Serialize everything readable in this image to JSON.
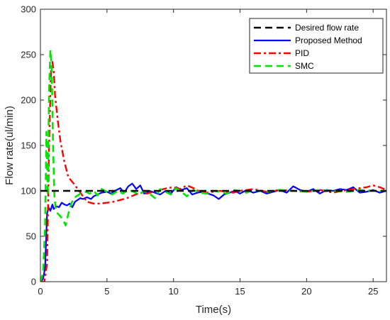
{
  "chart_data": {
    "type": "line",
    "title": "",
    "xlabel": "Time(s)",
    "ylabel": "Flow rate(ul/min)",
    "xlim": [
      0,
      26
    ],
    "ylim": [
      0,
      300
    ],
    "xticks": [
      0,
      5,
      10,
      15,
      20,
      25
    ],
    "yticks": [
      0,
      50,
      100,
      150,
      200,
      250,
      300
    ],
    "grid": false,
    "legend_position": "top-right",
    "series": [
      {
        "name": "Desired flow rate",
        "color": "#000000",
        "style": "dashed",
        "x": [
          0,
          26
        ],
        "y": [
          100,
          100
        ]
      },
      {
        "name": "Proposed Method",
        "color": "#0000ff",
        "style": "solid",
        "x": [
          0,
          0.2,
          0.35,
          0.5,
          0.6,
          0.75,
          0.9,
          1.0,
          1.2,
          1.4,
          1.6,
          1.8,
          2.0,
          2.2,
          2.4,
          2.6,
          2.8,
          3.0,
          3.2,
          3.5,
          3.8,
          4.0,
          4.3,
          4.6,
          5.0,
          5.3,
          5.6,
          6.0,
          6.3,
          6.6,
          6.9,
          7.2,
          7.5,
          7.8,
          8.2,
          8.6,
          9.0,
          9.4,
          9.8,
          10.2,
          10.6,
          11.0,
          11.4,
          11.8,
          12.2,
          12.6,
          13.0,
          13.4,
          13.8,
          14.2,
          14.6,
          15.0,
          15.5,
          16.0,
          16.5,
          17.0,
          17.5,
          18.0,
          18.5,
          19.0,
          19.5,
          20.0,
          20.5,
          21.0,
          21.5,
          22.0,
          22.5,
          23.0,
          23.5,
          24.0,
          24.5,
          25.0,
          25.5,
          26.0
        ],
        "y": [
          0,
          3,
          15,
          75,
          82,
          78,
          85,
          80,
          83,
          82,
          87,
          85,
          84,
          86,
          82,
          88,
          90,
          92,
          91,
          93,
          91,
          94,
          96,
          98,
          99,
          97,
          100,
          103,
          98,
          105,
          108,
          102,
          106,
          97,
          100,
          98,
          96,
          100,
          97,
          104,
          101,
          103,
          96,
          98,
          99,
          97,
          95,
          91,
          96,
          98,
          100,
          97,
          101,
          98,
          100,
          97,
          99,
          101,
          98,
          105,
          101,
          99,
          102,
          97,
          101,
          100,
          102,
          101,
          104,
          98,
          99,
          101,
          98,
          100
        ]
      },
      {
        "name": "PID",
        "color": "#ff0000",
        "style": "dashdot",
        "x": [
          0,
          0.3,
          0.5,
          0.65,
          0.8,
          0.9,
          1.0,
          1.1,
          1.3,
          1.5,
          1.8,
          2.1,
          2.5,
          3.0,
          3.5,
          4.0,
          4.5,
          5.0,
          5.5,
          6.0,
          6.5,
          7.0,
          7.5,
          8.0,
          8.5,
          9.0,
          9.5,
          10.0,
          10.5,
          11.0,
          11.5,
          12.0,
          12.5,
          13.0,
          13.5,
          14.0,
          14.5,
          15.0,
          16.0,
          17.0,
          18.0,
          19.0,
          20.0,
          21.0,
          22.0,
          23.0,
          24.0,
          24.5,
          25.0,
          25.5,
          26.0
        ],
        "y": [
          0,
          0,
          20,
          150,
          235,
          242,
          232,
          205,
          178,
          155,
          132,
          115,
          108,
          98,
          88,
          86,
          86,
          87,
          88,
          90,
          92,
          95,
          98,
          97,
          99,
          101,
          103,
          104,
          102,
          106,
          103,
          99,
          98,
          99,
          100,
          99,
          98,
          100,
          102,
          99,
          101,
          100,
          99,
          101,
          98,
          101,
          103,
          104,
          106,
          104,
          101
        ]
      },
      {
        "name": "SMC",
        "color": "#00e600",
        "style": "dashed",
        "x": [
          0,
          0.2,
          0.35,
          0.45,
          0.55,
          0.65,
          0.75,
          0.85,
          0.95,
          1.05,
          1.15,
          1.3,
          1.5,
          1.7,
          1.9,
          2.1,
          2.3,
          2.5,
          2.8,
          3.1,
          3.4,
          3.7,
          4.0,
          4.3,
          4.6,
          5.0,
          5.4,
          5.8,
          6.2,
          6.6,
          7.0,
          7.4,
          7.8,
          8.2,
          8.6,
          9.0,
          9.4,
          9.8,
          10.2,
          10.6,
          11.0,
          11.5,
          12.0,
          12.5,
          13.0,
          13.5,
          14.0,
          14.5,
          15.0,
          15.5,
          16.0,
          17.0,
          18.0,
          19.0,
          20.0,
          21.0,
          22.0,
          23.0,
          24.0,
          25.0,
          26.0
        ],
        "y": [
          0,
          10,
          60,
          165,
          95,
          210,
          255,
          235,
          150,
          95,
          80,
          75,
          72,
          68,
          62,
          75,
          85,
          92,
          95,
          98,
          99,
          97,
          100,
          95,
          102,
          99,
          96,
          100,
          97,
          101,
          99,
          96,
          100,
          97,
          92,
          102,
          99,
          96,
          103,
          99,
          94,
          101,
          98,
          97,
          100,
          99,
          97,
          101,
          100,
          98,
          101,
          99,
          101,
          100,
          99,
          101,
          100,
          99,
          101,
          100,
          100
        ]
      }
    ]
  }
}
